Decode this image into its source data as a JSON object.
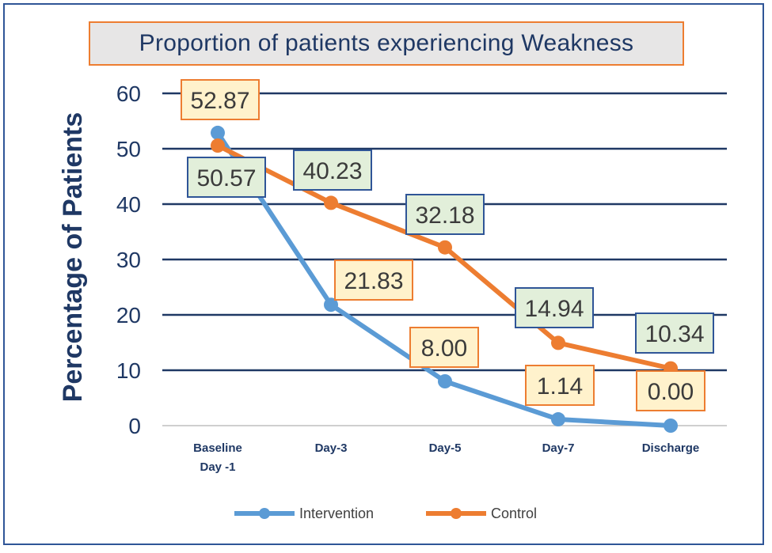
{
  "chart_data": {
    "type": "line",
    "title": "Proportion of patients experiencing Weakness",
    "xlabel": "",
    "ylabel": "Percentage of Patients",
    "categories": [
      [
        "Baseline",
        "Day -1"
      ],
      [
        "Day-3"
      ],
      [
        "Day-5"
      ],
      [
        "Day-7"
      ],
      [
        "Discharge"
      ]
    ],
    "ylim": [
      0,
      60
    ],
    "yticks": [
      0,
      10,
      20,
      30,
      40,
      50,
      60
    ],
    "grid": true,
    "legend_position": "bottom",
    "series": [
      {
        "name": "Intervention",
        "color": "#5b9bd5",
        "values": [
          52.87,
          21.83,
          8.0,
          1.14,
          0.0
        ],
        "labels": [
          "52.87",
          "21.83",
          "8.00",
          "1.14",
          "0.00"
        ],
        "label_fill": "#fff2cc",
        "label_border": "#ed7d31"
      },
      {
        "name": "Control",
        "color": "#ed7d31",
        "values": [
          50.57,
          40.23,
          32.18,
          14.94,
          10.34
        ],
        "labels": [
          "50.57",
          "40.23",
          "32.18",
          "14.94",
          "10.34"
        ],
        "label_fill": "#e2efda",
        "label_border": "#2f5597"
      }
    ]
  }
}
